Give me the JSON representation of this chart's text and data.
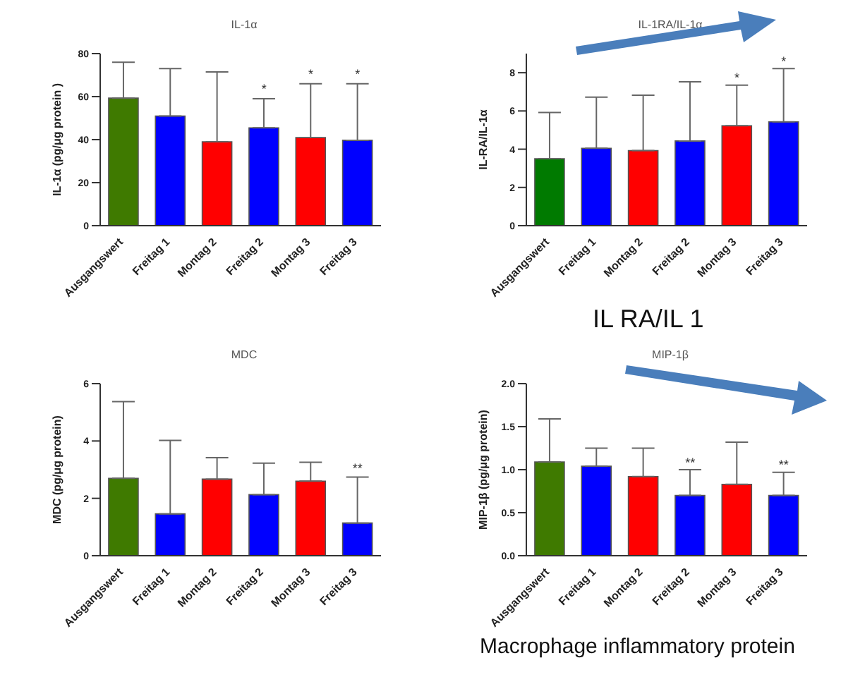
{
  "chart_data": [
    {
      "type": "bar",
      "title": "IL-1α",
      "ylabel": "IL-1α (pg/μg protein )",
      "categories": [
        "Ausgangswert",
        "Freitag 1",
        "Montag 2",
        "Freitag 2",
        "Montag 3",
        "Freitag 3"
      ],
      "values": [
        59.3,
        51,
        39,
        45.5,
        41,
        39.7
      ],
      "colors": [
        "#3f7a00",
        "#0000ff",
        "#ff0000",
        "#0000ff",
        "#ff0000",
        "#0000ff"
      ],
      "errors": [
        [
          59.3,
          76
        ],
        [
          51,
          73
        ],
        [
          39,
          71.5
        ],
        [
          45.5,
          59
        ],
        [
          41,
          66
        ],
        [
          39.7,
          66
        ]
      ],
      "ylim": [
        0,
        80
      ],
      "yticks": [
        0,
        20,
        40,
        60,
        80
      ],
      "grid": false,
      "legend": false,
      "annotations": [
        {
          "text": "*",
          "x": "Freitag 2",
          "y": 61
        },
        {
          "text": "*",
          "x": "Montag 3",
          "y": 68
        },
        {
          "text": "*",
          "x": "Freitag 3",
          "y": 68
        }
      ]
    },
    {
      "type": "bar",
      "title": "IL-1RA/IL-1α",
      "ylabel": "IL-RA/IL-1α",
      "categories": [
        "Ausgangswert",
        "Freitag 1",
        "Montag 2",
        "Freitag 2",
        "Montag 3",
        "Freitag 3"
      ],
      "values": [
        3.5,
        4.05,
        3.93,
        4.43,
        5.23,
        5.43
      ],
      "colors": [
        "#007a00",
        "#0000ff",
        "#ff0000",
        "#0000ff",
        "#ff0000",
        "#0000ff"
      ],
      "errors": [
        [
          3.5,
          5.92
        ],
        [
          4.05,
          6.72
        ],
        [
          3.93,
          6.82
        ],
        [
          4.43,
          7.52
        ],
        [
          5.23,
          7.35
        ],
        [
          5.43,
          8.22
        ]
      ],
      "ylim": [
        0,
        9
      ],
      "yticks": [
        0,
        2,
        4,
        6,
        8
      ],
      "grid": false,
      "legend": false,
      "annotations": [
        {
          "text": "*",
          "x": "Montag 3",
          "y": 7.45
        },
        {
          "text": "*",
          "x": "Freitag 3",
          "y": 8.3
        },
        "IL RA/IL 1"
      ]
    },
    {
      "type": "bar",
      "title": "MDC",
      "ylabel": "MDC (pg/μg protein)",
      "categories": [
        "Ausgangswert",
        "Freitag 1",
        "Montag 2",
        "Freitag 2",
        "Montag 3",
        "Freitag 3"
      ],
      "values": [
        2.7,
        1.46,
        2.67,
        2.13,
        2.6,
        1.14
      ],
      "colors": [
        "#3f7a00",
        "#0000ff",
        "#ff0000",
        "#0000ff",
        "#ff0000",
        "#0000ff"
      ],
      "errors": [
        [
          2.7,
          5.37
        ],
        [
          1.46,
          4.02
        ],
        [
          2.67,
          3.42
        ],
        [
          2.13,
          3.23
        ],
        [
          2.6,
          3.26
        ],
        [
          1.14,
          2.74
        ]
      ],
      "ylim": [
        0,
        6
      ],
      "yticks": [
        0,
        2,
        4,
        6
      ],
      "grid": false,
      "legend": false,
      "annotations": [
        {
          "text": "**",
          "x": "Freitag 3",
          "y": 2.85
        }
      ]
    },
    {
      "type": "bar",
      "title": "MIP-1β",
      "ylabel": "MIP-1β (pg/μg protein)",
      "categories": [
        "Ausgangswert",
        "Freitag 1",
        "Montag 2",
        "Freitag 2",
        "Montag 3",
        "Freitag 3"
      ],
      "values": [
        1.09,
        1.04,
        0.92,
        0.7,
        0.83,
        0.7
      ],
      "colors": [
        "#3f7a00",
        "#0000ff",
        "#ff0000",
        "#0000ff",
        "#ff0000",
        "#0000ff"
      ],
      "errors": [
        [
          1.09,
          1.59
        ],
        [
          1.04,
          1.25
        ],
        [
          0.92,
          1.25
        ],
        [
          0.7,
          1.0
        ],
        [
          0.83,
          1.32
        ],
        [
          0.7,
          0.97
        ]
      ],
      "ylim": [
        0,
        2
      ],
      "yticks": [
        {
          "value": 0,
          "label": "0.0"
        },
        {
          "value": 0.5,
          "label": "0.5"
        },
        {
          "value": 1,
          "label": "1.0"
        },
        {
          "value": 1.5,
          "label": "1.5"
        },
        {
          "value": 2,
          "label": "2.0"
        }
      ],
      "grid": false,
      "legend": false,
      "annotations": [
        {
          "text": "**",
          "x": "Freitag 2",
          "y": 1.02
        },
        {
          "text": "**",
          "x": "Freitag 3",
          "y": 0.99
        },
        "Macrophage inflammatory protein"
      ]
    }
  ]
}
